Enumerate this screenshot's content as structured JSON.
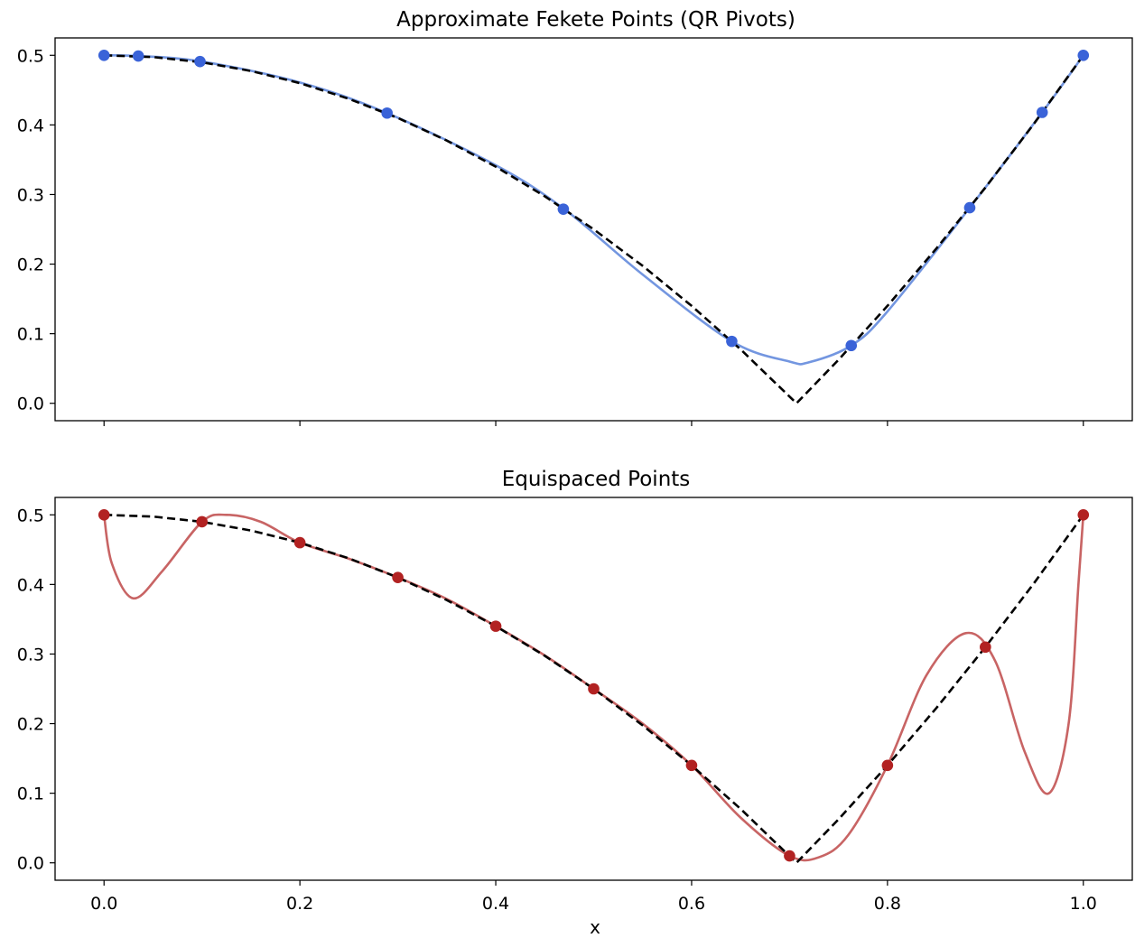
{
  "chart_data": [
    {
      "type": "line",
      "title": "Approximate Fekete Points (QR Pivots)",
      "xlabel": "",
      "ylabel": "",
      "xlim": [
        -0.05,
        1.05
      ],
      "ylim": [
        -0.025,
        0.525
      ],
      "xticks": [
        0.0,
        0.2,
        0.4,
        0.6,
        0.8,
        1.0
      ],
      "xtick_labels": [],
      "yticks": [
        0.0,
        0.1,
        0.2,
        0.3,
        0.4,
        0.5
      ],
      "ytick_labels": [
        "0.0",
        "0.1",
        "0.2",
        "0.3",
        "0.4",
        "0.5"
      ],
      "grid": false,
      "reference_curve": {
        "style": "dashed",
        "color": "#000000",
        "x": [
          0.0,
          0.05,
          0.1,
          0.15,
          0.2,
          0.25,
          0.3,
          0.35,
          0.4,
          0.45,
          0.5,
          0.55,
          0.6,
          0.65,
          0.7071,
          0.75,
          0.8,
          0.85,
          0.9,
          0.95,
          1.0
        ],
        "y": [
          0.5,
          0.4975,
          0.49,
          0.4775,
          0.46,
          0.4375,
          0.41,
          0.3775,
          0.34,
          0.2975,
          0.25,
          0.1975,
          0.14,
          0.0775,
          0.0,
          0.0625,
          0.14,
          0.2225,
          0.31,
          0.4025,
          0.5
        ]
      },
      "interpolant": {
        "color": "#7396e0",
        "x": [
          0.0,
          0.035,
          0.1,
          0.2,
          0.289,
          0.4,
          0.47,
          0.55,
          0.641,
          0.7,
          0.72,
          0.763,
          0.8,
          0.884,
          0.958,
          1.0
        ],
        "y": [
          0.5,
          0.499,
          0.491,
          0.461,
          0.417,
          0.342,
          0.279,
          0.185,
          0.089,
          0.06,
          0.059,
          0.083,
          0.132,
          0.281,
          0.418,
          0.5
        ]
      },
      "points": {
        "color": "#3a63d8",
        "x": [
          0.0,
          0.035,
          0.098,
          0.289,
          0.469,
          0.641,
          0.763,
          0.884,
          0.958,
          1.0
        ],
        "y": [
          0.5,
          0.499,
          0.491,
          0.417,
          0.279,
          0.089,
          0.083,
          0.281,
          0.418,
          0.5
        ]
      }
    },
    {
      "type": "line",
      "title": "Equispaced Points",
      "xlabel": "x",
      "ylabel": "",
      "xlim": [
        -0.05,
        1.05
      ],
      "ylim": [
        -0.025,
        0.525
      ],
      "xticks": [
        0.0,
        0.2,
        0.4,
        0.6,
        0.8,
        1.0
      ],
      "xtick_labels": [
        "0.0",
        "0.2",
        "0.4",
        "0.6",
        "0.8",
        "1.0"
      ],
      "yticks": [
        0.0,
        0.1,
        0.2,
        0.3,
        0.4,
        0.5
      ],
      "ytick_labels": [
        "0.0",
        "0.1",
        "0.2",
        "0.3",
        "0.4",
        "0.5"
      ],
      "grid": false,
      "reference_curve": {
        "style": "dashed",
        "color": "#000000",
        "x": [
          0.0,
          0.05,
          0.1,
          0.15,
          0.2,
          0.25,
          0.3,
          0.35,
          0.4,
          0.45,
          0.5,
          0.55,
          0.6,
          0.65,
          0.7071,
          0.75,
          0.8,
          0.85,
          0.9,
          0.95,
          1.0
        ],
        "y": [
          0.5,
          0.4975,
          0.49,
          0.4775,
          0.46,
          0.4375,
          0.41,
          0.3775,
          0.34,
          0.2975,
          0.25,
          0.1975,
          0.14,
          0.0775,
          0.0,
          0.0625,
          0.14,
          0.2225,
          0.31,
          0.4025,
          0.5
        ]
      },
      "interpolant": {
        "color": "#c86464",
        "x": [
          0.0,
          0.008,
          0.03,
          0.06,
          0.1,
          0.125,
          0.16,
          0.2,
          0.25,
          0.3,
          0.35,
          0.4,
          0.45,
          0.5,
          0.55,
          0.6,
          0.65,
          0.7,
          0.73,
          0.76,
          0.8,
          0.84,
          0.88,
          0.91,
          0.94,
          0.965,
          0.985,
          0.995,
          1.0
        ],
        "y": [
          0.5,
          0.43,
          0.38,
          0.42,
          0.49,
          0.5,
          0.49,
          0.46,
          0.437,
          0.41,
          0.379,
          0.34,
          0.298,
          0.25,
          0.2,
          0.14,
          0.065,
          0.01,
          0.008,
          0.04,
          0.14,
          0.27,
          0.33,
          0.29,
          0.16,
          0.1,
          0.2,
          0.4,
          0.5
        ]
      },
      "points": {
        "color": "#b22222",
        "x": [
          0.0,
          0.1,
          0.2,
          0.3,
          0.4,
          0.5,
          0.6,
          0.7,
          0.8,
          0.9,
          1.0
        ],
        "y": [
          0.5,
          0.49,
          0.46,
          0.41,
          0.34,
          0.25,
          0.14,
          0.01,
          0.14,
          0.31,
          0.5
        ]
      }
    }
  ]
}
